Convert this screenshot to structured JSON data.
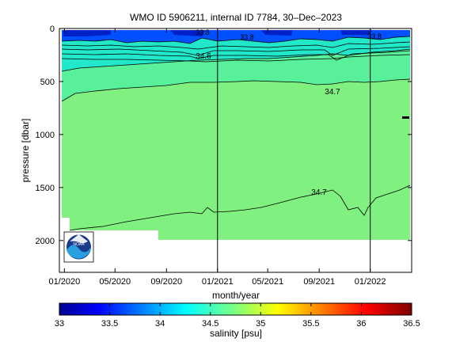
{
  "chart_data": {
    "type": "contour",
    "title": "WMO ID 5906211, internal ID 7784, 30–Dec–2023",
    "xlabel": "month/year",
    "ylabel": "pressure [dbar]",
    "x_ticks": [
      "01/2020",
      "05/2020",
      "09/2020",
      "01/2021",
      "05/2021",
      "09/2021",
      "01/2022"
    ],
    "x_tick_dates": [
      "2020-01-01",
      "2020-05-01",
      "2020-09-01",
      "2021-01-01",
      "2021-05-01",
      "2021-09-01",
      "2022-01-01"
    ],
    "xlim": [
      "2019-12-20",
      "2022-04-10"
    ],
    "ylim": [
      0,
      2300
    ],
    "y_reversed": true,
    "y_ticks": [
      0,
      500,
      1000,
      1500,
      2000
    ],
    "year_markers": [
      "2021-01-01",
      "2022-01-01"
    ],
    "contour_labels": [
      {
        "text": "34.6",
        "x": "2020-10-10",
        "y": 250
      },
      {
        "text": "34.7",
        "x": "2021-10-15",
        "y": 580
      },
      {
        "text": "34.7",
        "x": "2021-08-05",
        "y": 1520
      },
      {
        "text": "33.8",
        "x": "2020-10-25",
        "y": 40
      },
      {
        "text": "33.8",
        "x": "2021-03-01",
        "y": 70
      },
      {
        "text": "33.8",
        "x": "2022-02-01",
        "y": 65
      }
    ],
    "fill_levels": [
      {
        "range": "< 34.0",
        "color": "#0040ff"
      },
      {
        "range": "34.0–34.5",
        "color": "#20e8c8"
      },
      {
        "range": "34.5–34.7",
        "color": "#58f09a"
      },
      {
        "range": "34.7–34.8",
        "color": "#80f080"
      }
    ],
    "colorbar": {
      "label": "salinity [psu]",
      "ticks": [
        "33",
        "33.5",
        "34",
        "34.5",
        "35",
        "35.5",
        "36",
        "36.5"
      ],
      "range": [
        33,
        36.5
      ],
      "colormap": "jet"
    },
    "grid": false,
    "logo": "NOAA"
  }
}
